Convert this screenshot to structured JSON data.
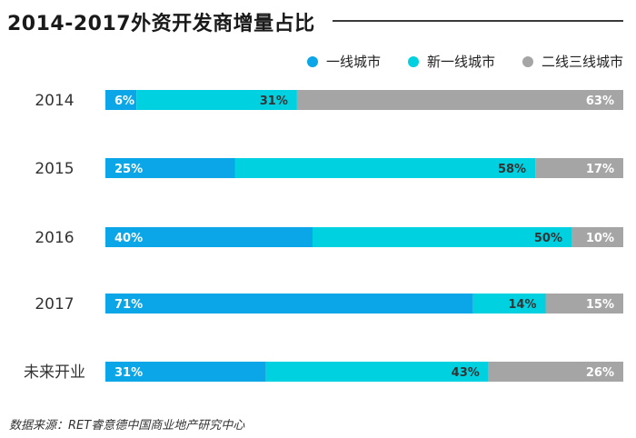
{
  "title": "2014-2017外资开发商增量占比",
  "source": "数据来源：RET睿意德中国商业地产研究中心",
  "colors": {
    "series": [
      "#0aa6e8",
      "#00d1e1",
      "#a5a5a6"
    ],
    "label_text": "#ffffff",
    "bar_label_text": "#333333"
  },
  "chart_data": {
    "type": "bar",
    "orientation": "horizontal",
    "stacked": true,
    "percent_stacked": true,
    "title": "2014-2017外资开发商增量占比",
    "legend_position": "top-right",
    "categories": [
      "2014",
      "2015",
      "2016",
      "2017",
      "未来开业"
    ],
    "series": [
      {
        "name": "一线城市",
        "values": [
          6,
          25,
          40,
          71,
          31
        ],
        "labels": [
          "6%",
          "25%",
          "40%",
          "71%",
          "31%"
        ]
      },
      {
        "name": "新一线城市",
        "values": [
          31,
          58,
          50,
          14,
          43
        ],
        "labels": [
          "31%",
          "58%",
          "50%",
          "14%",
          "43%"
        ]
      },
      {
        "name": "二线三线城市",
        "values": [
          63,
          17,
          10,
          15,
          26
        ],
        "labels": [
          "63%",
          "17%",
          "10%",
          "15%",
          "26%"
        ]
      }
    ]
  }
}
